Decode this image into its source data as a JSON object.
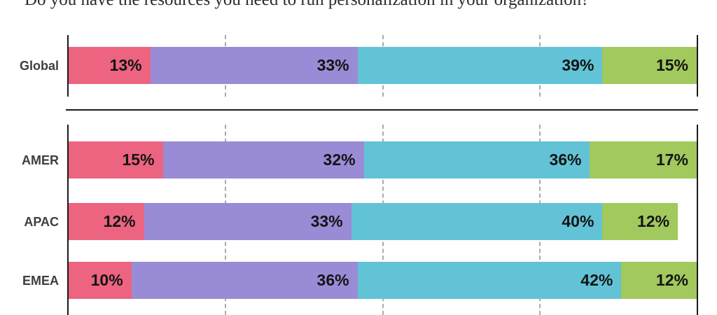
{
  "title": "Do you have the resources you need to run personalization in your organization?",
  "colors": {
    "segment1": "#ec6480",
    "segment2": "#9a8bd6",
    "segment3": "#62c3d6",
    "segment4": "#a2c95d",
    "axis": "#1b1b1b",
    "gridline": "#ababab",
    "value_label": "#141414",
    "category_label": "#3e3e40"
  },
  "chart_data": {
    "type": "bar",
    "orientation": "horizontal",
    "stacked": true,
    "unit": "%",
    "title": "Do you have the resources you need to run personalization in your organization?",
    "categories": [
      "Global",
      "AMER",
      "APAC",
      "EMEA"
    ],
    "series": [
      {
        "name": "segment-1-pink",
        "color": "#ec6480",
        "values": [
          13,
          15,
          12,
          10
        ]
      },
      {
        "name": "segment-2-purple",
        "color": "#9a8bd6",
        "values": [
          33,
          32,
          33,
          36
        ]
      },
      {
        "name": "segment-3-cyan",
        "color": "#62c3d6",
        "values": [
          39,
          36,
          40,
          42
        ]
      },
      {
        "name": "segment-4-green",
        "color": "#a2c95d",
        "values": [
          15,
          17,
          12,
          12
        ]
      }
    ],
    "xlim": [
      0,
      100
    ],
    "gridlines_percent": [
      25,
      50,
      75
    ],
    "grid": true,
    "legend": "none",
    "value_labels": "inside-right",
    "groups": [
      [
        "Global"
      ],
      [
        "AMER",
        "APAC",
        "EMEA"
      ]
    ]
  }
}
